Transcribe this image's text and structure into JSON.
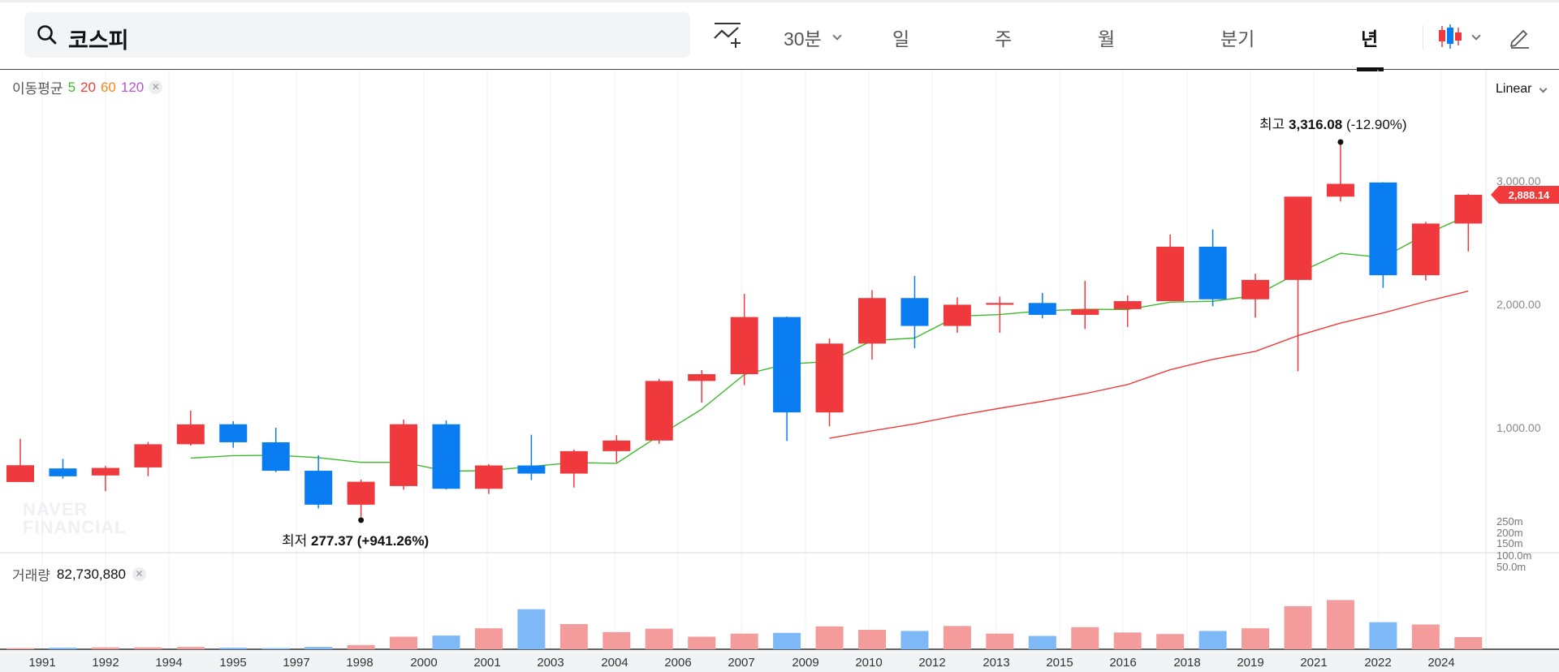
{
  "search": {
    "value": "코스피"
  },
  "toolbar": {
    "interval": "30분",
    "periods": [
      "일",
      "주",
      "월",
      "분기",
      "년"
    ],
    "active_period": "년",
    "indicator_icon": "chart-add-indicator-icon",
    "candle_icon": "candlestick-icon",
    "draw_icon": "pencil-icon"
  },
  "ma_legend": {
    "label": "이동평균",
    "periods": [
      "5",
      "20",
      "60",
      "120"
    ],
    "colors": [
      "#3dba2c",
      "#f23a3a",
      "#f08a1c",
      "#b455d6"
    ]
  },
  "scale": {
    "label": "Linear"
  },
  "watermark": {
    "line1": "NAVER",
    "line2": "FINANCIAL"
  },
  "annotations": {
    "high": {
      "label": "최고",
      "value": "3,316.08",
      "change": "(-12.90%)"
    },
    "low": {
      "label": "최저",
      "value": "277.37",
      "change": "(+941.26%)"
    }
  },
  "current_price": {
    "label": "2,888.14",
    "value": 2888.14,
    "color": "#f23a3a"
  },
  "volume": {
    "label": "거래량",
    "value": "82,730,880"
  },
  "colors": {
    "up": "#f0393c",
    "down": "#0a7cf2",
    "ma5": "#3dba2c",
    "ma20": "#f23a3a",
    "vol_up": "#f49b9c",
    "vol_down": "#7fb8f7"
  },
  "chart_data": {
    "type": "candlestick",
    "price_ticks": [
      1000,
      2000,
      3000
    ],
    "price_tick_labels": [
      "1,000.00",
      "2,000.00",
      "3,000.00"
    ],
    "volume_tick_labels": [
      "250m",
      "200m",
      "150m",
      "100.0m",
      "50.0m"
    ],
    "x_labels": [
      "1991",
      "1992",
      "1994",
      "1995",
      "1997",
      "1998",
      "2000",
      "2001",
      "2003",
      "2004",
      "2006",
      "2007",
      "2009",
      "2010",
      "2012",
      "2013",
      "2015",
      "2016",
      "2018",
      "2019",
      "2021",
      "2022",
      "2024"
    ],
    "candles": [
      {
        "o": 560,
        "c": 696,
        "h": 910,
        "l": 560
      },
      {
        "o": 670,
        "c": 606,
        "h": 747,
        "l": 586
      },
      {
        "o": 613,
        "c": 674,
        "h": 690,
        "l": 486
      },
      {
        "o": 678,
        "c": 866,
        "h": 885,
        "l": 607
      },
      {
        "o": 866,
        "c": 1027,
        "h": 1138,
        "l": 855
      },
      {
        "o": 1028,
        "c": 882,
        "h": 1052,
        "l": 838
      },
      {
        "o": 882,
        "c": 651,
        "h": 1000,
        "l": 639
      },
      {
        "o": 651,
        "c": 376,
        "h": 776,
        "l": 346
      },
      {
        "o": 376,
        "c": 562,
        "h": 580,
        "l": 277
      },
      {
        "o": 527,
        "c": 1028,
        "h": 1066,
        "l": 498
      },
      {
        "o": 1028,
        "c": 505,
        "h": 1059,
        "l": 500
      },
      {
        "o": 505,
        "c": 694,
        "h": 705,
        "l": 463
      },
      {
        "o": 694,
        "c": 628,
        "h": 943,
        "l": 575
      },
      {
        "o": 628,
        "c": 810,
        "h": 822,
        "l": 515
      },
      {
        "o": 810,
        "c": 896,
        "h": 939,
        "l": 719
      },
      {
        "o": 896,
        "c": 1379,
        "h": 1395,
        "l": 870
      },
      {
        "o": 1379,
        "c": 1434,
        "h": 1467,
        "l": 1203
      },
      {
        "o": 1434,
        "c": 1897,
        "h": 2085,
        "l": 1345
      },
      {
        "o": 1897,
        "c": 1124,
        "h": 1901,
        "l": 892
      },
      {
        "o": 1124,
        "c": 1682,
        "h": 1723,
        "l": 1011
      },
      {
        "o": 1682,
        "c": 2051,
        "h": 2115,
        "l": 1552
      },
      {
        "o": 2051,
        "c": 1825,
        "h": 2231,
        "l": 1644
      },
      {
        "o": 1825,
        "c": 1997,
        "h": 2057,
        "l": 1770
      },
      {
        "o": 1997,
        "c": 2011,
        "h": 2063,
        "l": 1770
      },
      {
        "o": 2011,
        "c": 1915,
        "h": 2093,
        "l": 1886
      },
      {
        "o": 1915,
        "c": 1961,
        "h": 2190,
        "l": 1800
      },
      {
        "o": 1961,
        "c": 2026,
        "h": 2073,
        "l": 1817
      },
      {
        "o": 2026,
        "c": 2467,
        "h": 2566,
        "l": 2026
      },
      {
        "o": 2467,
        "c": 2041,
        "h": 2607,
        "l": 1985
      },
      {
        "o": 2041,
        "c": 2198,
        "h": 2248,
        "l": 1892
      },
      {
        "o": 2198,
        "c": 2873,
        "h": 2873,
        "l": 1457
      },
      {
        "o": 2873,
        "c": 2977,
        "h": 3316,
        "l": 2834
      },
      {
        "o": 2988,
        "c": 2236,
        "h": 2989,
        "l": 2134
      },
      {
        "o": 2236,
        "c": 2655,
        "h": 2669,
        "l": 2193
      },
      {
        "o": 2655,
        "c": 2888,
        "h": 2896,
        "l": 2429
      }
    ],
    "ma5": [
      null,
      null,
      null,
      null,
      754,
      774,
      777,
      757,
      719,
      719,
      649,
      651,
      686,
      718,
      711,
      936,
      1150,
      1431,
      1516,
      1536,
      1706,
      1727,
      1904,
      1917,
      1948,
      1960,
      1958,
      2018,
      2025,
      2071,
      2254,
      2414,
      2379,
      2568,
      2722
    ],
    "ma20": [
      null,
      null,
      null,
      null,
      null,
      null,
      null,
      null,
      null,
      null,
      null,
      null,
      null,
      null,
      null,
      null,
      null,
      null,
      null,
      915,
      975,
      1031,
      1098,
      1158,
      1214,
      1276,
      1350,
      1470,
      1554,
      1619,
      1746,
      1848,
      1930,
      2023,
      2107
    ],
    "volume": [
      3,
      4,
      5,
      5,
      6,
      4,
      3,
      6,
      11,
      33,
      36,
      55,
      105,
      66,
      45,
      54,
      33,
      41,
      43,
      60,
      51,
      48,
      61,
      41,
      35,
      58,
      44,
      40,
      48,
      55,
      113,
      129,
      71,
      65,
      32
    ]
  }
}
